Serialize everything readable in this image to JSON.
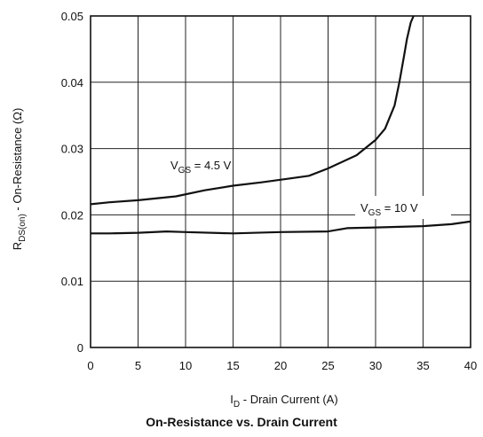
{
  "chart_data": {
    "type": "line",
    "title": "On-Resistance vs. Drain Current",
    "xlabel": {
      "main": "I",
      "sub": "D",
      "rest": " - Drain Current (A)"
    },
    "ylabel": {
      "main": "R",
      "sub": "DS(on)",
      "rest": " - On-Resistance (Ω)"
    },
    "xlim": [
      0,
      40
    ],
    "ylim": [
      0,
      0.05
    ],
    "xticks": [
      0,
      5,
      10,
      15,
      20,
      25,
      30,
      35,
      40
    ],
    "yticks": [
      0,
      0.01,
      0.02,
      0.03,
      0.04,
      0.05
    ],
    "ytick_labels": [
      "0",
      "0.01",
      "0.02",
      "0.03",
      "0.04",
      "0.05"
    ],
    "grid": true,
    "series": [
      {
        "label": {
          "main": "V",
          "sub": "GS",
          "rest": " = 4.5 V"
        },
        "color": "#111111",
        "x": [
          0,
          2,
          5,
          9,
          12,
          15,
          18,
          21,
          23,
          25,
          28,
          30,
          31,
          32,
          32.5,
          33,
          33.3,
          33.7,
          34,
          34.3
        ],
        "y": [
          0.0216,
          0.0219,
          0.0222,
          0.0228,
          0.0237,
          0.0244,
          0.0249,
          0.0255,
          0.0259,
          0.027,
          0.029,
          0.0313,
          0.033,
          0.0365,
          0.04,
          0.044,
          0.0465,
          0.049,
          0.05,
          0.051
        ]
      },
      {
        "label": {
          "main": "V",
          "sub": "GS",
          "rest": " = 10 V"
        },
        "color": "#111111",
        "x": [
          0,
          2,
          5,
          8,
          10,
          15,
          20,
          25,
          27,
          30,
          35,
          38,
          40
        ],
        "y": [
          0.0172,
          0.0172,
          0.0173,
          0.0175,
          0.0174,
          0.0172,
          0.0174,
          0.0175,
          0.018,
          0.0181,
          0.0183,
          0.0186,
          0.019
        ]
      }
    ]
  }
}
